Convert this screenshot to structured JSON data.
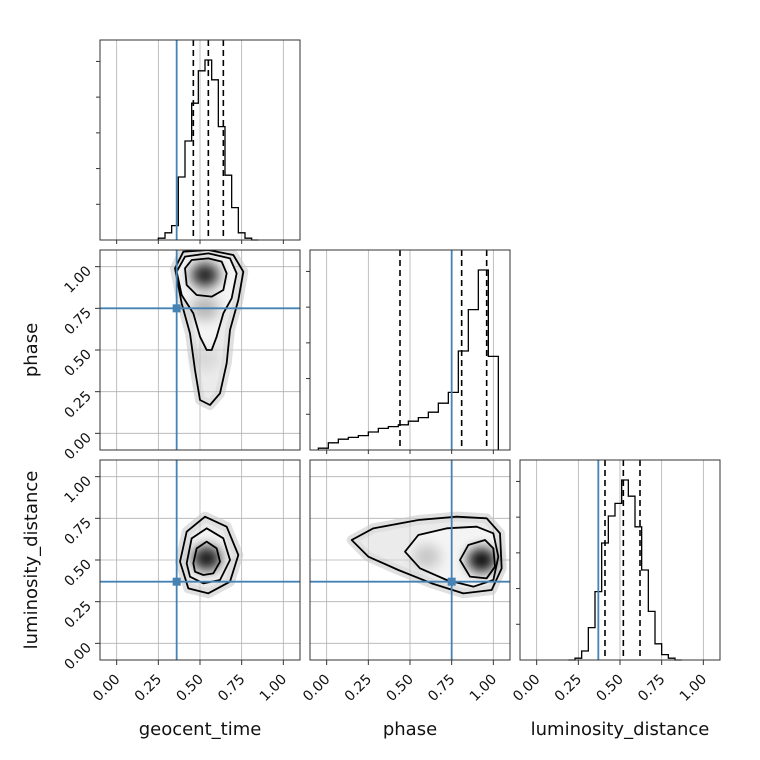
{
  "chart_data": {
    "type": "corner",
    "parameters": [
      "geocent_time",
      "phase",
      "luminosity_distance"
    ],
    "range": [
      -0.1,
      1.1
    ],
    "tick_labels": [
      "0.00",
      "0.25",
      "0.50",
      "0.75",
      "1.00"
    ],
    "tick_values": [
      0,
      0.25,
      0.5,
      0.75,
      1.0
    ],
    "grid": true,
    "truths": [
      0.36,
      0.75,
      0.37
    ],
    "colors": {
      "truth": "#4682b4",
      "line": "#000000",
      "grid": "#b0b0b0"
    },
    "marginals": [
      {
        "parameter": "geocent_time",
        "quantiles": [
          0.46,
          0.55,
          0.64
        ],
        "bin_edges": [
          0.25,
          0.29,
          0.33,
          0.37,
          0.41,
          0.45,
          0.49,
          0.53,
          0.57,
          0.61,
          0.65,
          0.69,
          0.73,
          0.77,
          0.81,
          0.85
        ],
        "counts": [
          0.01,
          0.04,
          0.08,
          0.35,
          0.55,
          0.76,
          0.94,
          1.0,
          0.89,
          0.63,
          0.36,
          0.18,
          0.04,
          0.01,
          0.0
        ]
      },
      {
        "parameter": "phase",
        "quantiles": [
          0.44,
          0.81,
          0.96
        ],
        "bin_edges": [
          -0.05,
          0.01,
          0.07,
          0.13,
          0.19,
          0.25,
          0.31,
          0.37,
          0.43,
          0.49,
          0.55,
          0.61,
          0.67,
          0.73,
          0.79,
          0.85,
          0.91,
          0.97,
          1.03
        ],
        "counts": [
          0.01,
          0.04,
          0.06,
          0.07,
          0.08,
          0.1,
          0.12,
          0.13,
          0.14,
          0.16,
          0.18,
          0.21,
          0.26,
          0.32,
          0.55,
          0.78,
          1.0,
          0.52
        ]
      },
      {
        "parameter": "luminosity_distance",
        "quantiles": [
          0.41,
          0.52,
          0.62
        ],
        "bin_edges": [
          0.19,
          0.23,
          0.27,
          0.31,
          0.35,
          0.39,
          0.43,
          0.47,
          0.51,
          0.55,
          0.59,
          0.63,
          0.67,
          0.71,
          0.75,
          0.79,
          0.83,
          0.87
        ],
        "counts": [
          0.0,
          0.01,
          0.05,
          0.18,
          0.38,
          0.65,
          0.8,
          0.87,
          1.0,
          0.91,
          0.74,
          0.5,
          0.27,
          0.09,
          0.03,
          0.01,
          0.0
        ]
      }
    ],
    "joints": [
      {
        "x": "geocent_time",
        "y": "phase",
        "density": [
          {
            "x": 0.53,
            "y": 0.95,
            "weight": 0.85
          },
          {
            "x": 0.53,
            "y": 0.75,
            "weight": 0.25
          },
          {
            "x": 0.53,
            "y": 0.45,
            "weight": 0.08
          }
        ],
        "contours": [
          {
            "level": 1,
            "points": [
              [
                0.41,
                0.99
              ],
              [
                0.45,
                1.04
              ],
              [
                0.55,
                1.05
              ],
              [
                0.63,
                1.03
              ],
              [
                0.66,
                0.96
              ],
              [
                0.64,
                0.86
              ],
              [
                0.57,
                0.82
              ],
              [
                0.48,
                0.83
              ],
              [
                0.42,
                0.89
              ]
            ]
          },
          {
            "level": 2,
            "points": [
              [
                0.36,
                0.97
              ],
              [
                0.41,
                1.06
              ],
              [
                0.55,
                1.08
              ],
              [
                0.68,
                1.05
              ],
              [
                0.72,
                0.96
              ],
              [
                0.69,
                0.81
              ],
              [
                0.64,
                0.72
              ],
              [
                0.6,
                0.58
              ],
              [
                0.57,
                0.5
              ],
              [
                0.54,
                0.5
              ],
              [
                0.5,
                0.58
              ],
              [
                0.46,
                0.72
              ],
              [
                0.39,
                0.83
              ]
            ]
          },
          {
            "level": 3,
            "points": [
              [
                0.35,
                0.99
              ],
              [
                0.4,
                1.09
              ],
              [
                0.55,
                1.1
              ],
              [
                0.7,
                1.07
              ],
              [
                0.76,
                0.97
              ],
              [
                0.73,
                0.8
              ],
              [
                0.68,
                0.62
              ],
              [
                0.66,
                0.42
              ],
              [
                0.62,
                0.24
              ],
              [
                0.56,
                0.17
              ],
              [
                0.5,
                0.2
              ],
              [
                0.47,
                0.38
              ],
              [
                0.44,
                0.6
              ],
              [
                0.39,
                0.78
              ]
            ]
          }
        ]
      },
      {
        "x": "geocent_time",
        "y": "luminosity_distance",
        "density": [
          {
            "x": 0.54,
            "y": 0.51,
            "weight": 0.9
          }
        ],
        "contours": [
          {
            "level": 1,
            "points": [
              [
                0.46,
                0.48
              ],
              [
                0.48,
                0.57
              ],
              [
                0.54,
                0.61
              ],
              [
                0.6,
                0.57
              ],
              [
                0.62,
                0.49
              ],
              [
                0.58,
                0.42
              ],
              [
                0.52,
                0.41
              ],
              [
                0.47,
                0.43
              ]
            ]
          },
          {
            "level": 2,
            "points": [
              [
                0.42,
                0.48
              ],
              [
                0.45,
                0.63
              ],
              [
                0.54,
                0.69
              ],
              [
                0.64,
                0.63
              ],
              [
                0.68,
                0.5
              ],
              [
                0.62,
                0.38
              ],
              [
                0.52,
                0.36
              ],
              [
                0.44,
                0.4
              ]
            ]
          },
          {
            "level": 3,
            "points": [
              [
                0.38,
                0.49
              ],
              [
                0.42,
                0.67
              ],
              [
                0.53,
                0.76
              ],
              [
                0.66,
                0.7
              ],
              [
                0.73,
                0.53
              ],
              [
                0.68,
                0.37
              ],
              [
                0.55,
                0.3
              ],
              [
                0.43,
                0.33
              ]
            ]
          }
        ]
      },
      {
        "x": "phase",
        "y": "luminosity_distance",
        "density": [
          {
            "x": 0.93,
            "y": 0.5,
            "weight": 0.95
          },
          {
            "x": 0.6,
            "y": 0.52,
            "weight": 0.18
          }
        ],
        "contours": [
          {
            "level": 1,
            "points": [
              [
                0.8,
                0.5
              ],
              [
                0.85,
                0.59
              ],
              [
                0.95,
                0.62
              ],
              [
                1.0,
                0.57
              ],
              [
                1.01,
                0.46
              ],
              [
                0.96,
                0.39
              ],
              [
                0.86,
                0.4
              ]
            ]
          },
          {
            "level": 2,
            "points": [
              [
                0.47,
                0.55
              ],
              [
                0.55,
                0.65
              ],
              [
                0.72,
                0.69
              ],
              [
                0.9,
                0.7
              ],
              [
                1.0,
                0.66
              ],
              [
                1.03,
                0.52
              ],
              [
                1.0,
                0.38
              ],
              [
                0.88,
                0.34
              ],
              [
                0.72,
                0.38
              ],
              [
                0.56,
                0.45
              ]
            ]
          },
          {
            "level": 3,
            "points": [
              [
                0.15,
                0.62
              ],
              [
                0.28,
                0.69
              ],
              [
                0.55,
                0.74
              ],
              [
                0.78,
                0.76
              ],
              [
                0.96,
                0.75
              ],
              [
                1.04,
                0.66
              ],
              [
                1.05,
                0.45
              ],
              [
                0.99,
                0.32
              ],
              [
                0.82,
                0.3
              ],
              [
                0.63,
                0.36
              ],
              [
                0.43,
                0.44
              ],
              [
                0.25,
                0.52
              ]
            ]
          }
        ]
      }
    ]
  }
}
